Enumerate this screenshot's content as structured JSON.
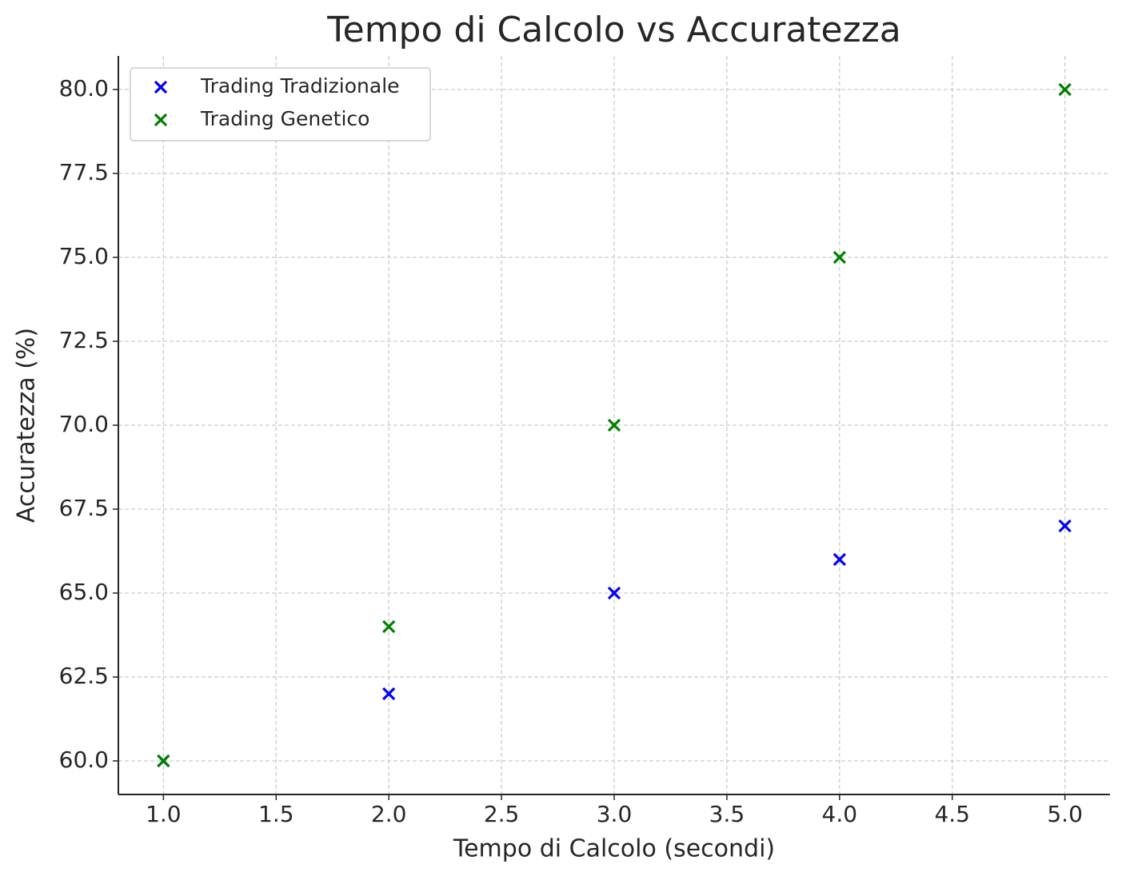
{
  "chart_data": {
    "type": "scatter",
    "title": "Tempo di Calcolo vs Accuratezza",
    "x_label": "Tempo di Calcolo (secondi)",
    "y_label": "Accuratezza (%)",
    "series": [
      {
        "name": "Trading Tradizionale",
        "color": "#0000ff",
        "x": [
          1,
          2,
          3,
          4,
          5
        ],
        "values": [
          60,
          62,
          65,
          66,
          67
        ]
      },
      {
        "name": "Trading Genetico",
        "color": "#008000",
        "x": [
          1,
          2,
          3,
          4,
          5
        ],
        "values": [
          60,
          64,
          70,
          75,
          80
        ]
      }
    ],
    "xlim": [
      0.8,
      5.2
    ],
    "ylim": [
      59,
      81
    ],
    "xticks": [
      {
        "value": 1,
        "label": "1.0"
      },
      {
        "value": 1.5,
        "label": "1.5"
      },
      {
        "value": 2,
        "label": "2.0"
      },
      {
        "value": 2.5,
        "label": "2.5"
      },
      {
        "value": 3,
        "label": "3.0"
      },
      {
        "value": 3.5,
        "label": "3.5"
      },
      {
        "value": 4,
        "label": "4.0"
      },
      {
        "value": 4.5,
        "label": "4.5"
      },
      {
        "value": 5,
        "label": "5.0"
      }
    ],
    "yticks": [
      {
        "value": 60,
        "label": "60.0"
      },
      {
        "value": 62.5,
        "label": "62.5"
      },
      {
        "value": 65,
        "label": "65.0"
      },
      {
        "value": 67.5,
        "label": "67.5"
      },
      {
        "value": 70,
        "label": "70.0"
      },
      {
        "value": 72.5,
        "label": "72.5"
      },
      {
        "value": 75,
        "label": "75.0"
      },
      {
        "value": 77.5,
        "label": "77.5"
      },
      {
        "value": 80,
        "label": "80.0"
      }
    ],
    "grid": true,
    "legend": "upper left"
  }
}
